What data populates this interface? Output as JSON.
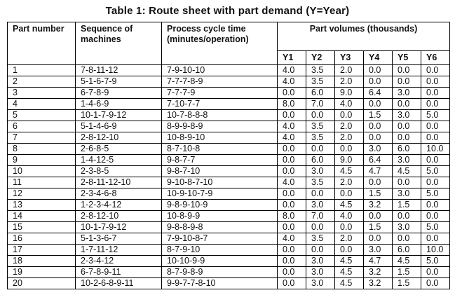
{
  "title": "Table 1: Route sheet with part demand (Y=Year)",
  "table": {
    "headers": {
      "part_number": "Part number",
      "sequence": "Sequence of\nmachines",
      "process": "Process cycle time\n(minutes/operation)",
      "volumes": "Part volumes (thousands)",
      "years": [
        "Y1",
        "Y2",
        "Y3",
        "Y4",
        "Y5",
        "Y6"
      ]
    },
    "rows": [
      {
        "part": "1",
        "sequence": "7-8-11-12",
        "process": "7-9-10-10",
        "volumes": [
          "4.0",
          "3.5",
          "2.0",
          "0.0",
          "0.0",
          "0.0"
        ]
      },
      {
        "part": "2",
        "sequence": "5-1-6-7-9",
        "process": "7-7-7-8-9",
        "volumes": [
          "4.0",
          "3.5",
          "2.0",
          "0.0",
          "0.0",
          "0.0"
        ]
      },
      {
        "part": "3",
        "sequence": "6-7-8-9",
        "process": "7-7-7-9",
        "volumes": [
          "0.0",
          "6.0",
          "9.0",
          "6.4",
          "3.0",
          "0.0"
        ]
      },
      {
        "part": "4",
        "sequence": "1-4-6-9",
        "process": "7-10-7-7",
        "volumes": [
          "8.0",
          "7.0",
          "4.0",
          "0.0",
          "0.0",
          "0.0"
        ]
      },
      {
        "part": "5",
        "sequence": "10-1-7-9-12",
        "process": "10-7-8-8-8",
        "volumes": [
          "0.0",
          "0.0",
          "0.0",
          "1.5",
          "3.0",
          "5.0"
        ]
      },
      {
        "part": "6",
        "sequence": "5-1-4-6-9",
        "process": "8-9-9-8-9",
        "volumes": [
          "4.0",
          "3.5",
          "2.0",
          "0.0",
          "0.0",
          "0.0"
        ]
      },
      {
        "part": "7",
        "sequence": "2-8-12-10",
        "process": "10-8-9-10",
        "volumes": [
          "4.0",
          "3.5",
          "2.0",
          "0.0",
          "0.0",
          "0.0"
        ]
      },
      {
        "part": "8",
        "sequence": "2-6-8-5",
        "process": "8-7-10-8",
        "volumes": [
          "0.0",
          "0.0",
          "0.0",
          "3.0",
          "6.0",
          "10.0"
        ]
      },
      {
        "part": "9",
        "sequence": "1-4-12-5",
        "process": "9-8-7-7",
        "volumes": [
          "0.0",
          "6.0",
          "9.0",
          "6.4",
          "3.0",
          "0.0"
        ]
      },
      {
        "part": "10",
        "sequence": "2-3-8-5",
        "process": "9-8-7-10",
        "volumes": [
          "0.0",
          "3.0",
          "4.5",
          "4.7",
          "4.5",
          "5.0"
        ]
      },
      {
        "part": "11",
        "sequence": "2-8-11-12-10",
        "process": "9-10-8-7-10",
        "volumes": [
          "4.0",
          "3.5",
          "2.0",
          "0.0",
          "0.0",
          "0.0"
        ]
      },
      {
        "part": "12",
        "sequence": "2-3-4-6-8",
        "process": "10-9-10-7-9",
        "volumes": [
          "0.0",
          "0.0",
          "0.0",
          "1.5",
          "3.0",
          "5.0"
        ]
      },
      {
        "part": "13",
        "sequence": "1-2-3-4-12",
        "process": "9-8-9-10-9",
        "volumes": [
          "0.0",
          "3.0",
          "4.5",
          "3.2",
          "1.5",
          "0.0"
        ]
      },
      {
        "part": "14",
        "sequence": "2-8-12-10",
        "process": "10-8-9-9",
        "volumes": [
          "8.0",
          "7.0",
          "4.0",
          "0.0",
          "0.0",
          "0.0"
        ]
      },
      {
        "part": "15",
        "sequence": "10-1-7-9-12",
        "process": "9-8-8-9-8",
        "volumes": [
          "0.0",
          "0.0",
          "0.0",
          "1.5",
          "3.0",
          "5.0"
        ]
      },
      {
        "part": "16",
        "sequence": "5-1-3-6-7",
        "process": "7-9-10-8-7",
        "volumes": [
          "4.0",
          "3.5",
          "2.0",
          "0.0",
          "0.0",
          "0.0"
        ]
      },
      {
        "part": "17",
        "sequence": "1-7-11-12",
        "process": "8-7-9-10",
        "volumes": [
          "0.0",
          "0.0",
          "0.0",
          "3.0",
          "6.0",
          "10.0"
        ]
      },
      {
        "part": "18",
        "sequence": "2-3-4-12",
        "process": "10-10-9-9",
        "volumes": [
          "0.0",
          "3.0",
          "4.5",
          "4.7",
          "4.5",
          "5.0"
        ]
      },
      {
        "part": "19",
        "sequence": "6-7-8-9-11",
        "process": "8-7-9-8-9",
        "volumes": [
          "0.0",
          "3.0",
          "4.5",
          "3.2",
          "1.5",
          "0.0"
        ]
      },
      {
        "part": "20",
        "sequence": "10-2-6-8-9-11",
        "process": "9-9-7-7-8-10",
        "volumes": [
          "0.0",
          "3.0",
          "4.5",
          "3.2",
          "1.5",
          "0.0"
        ]
      }
    ]
  }
}
